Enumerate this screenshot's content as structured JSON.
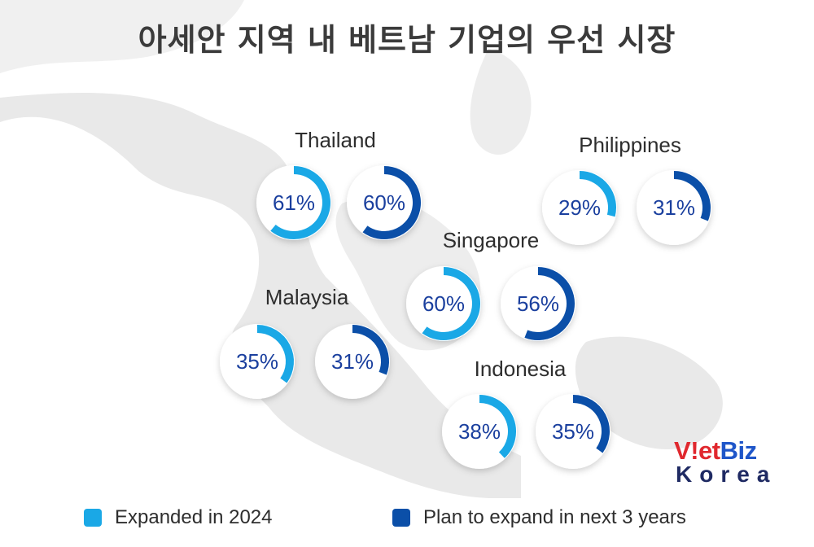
{
  "title": "아세안 지역 내 베트남 기업의 우선 시장",
  "chart_data": {
    "type": "donut",
    "value_unit": "%",
    "series": [
      {
        "name": "Expanded in 2024",
        "color": "#1aa8e6"
      },
      {
        "name": "Plan to expand in next 3 years",
        "color": "#0b4fa8"
      }
    ],
    "countries": [
      {
        "name": "Thailand",
        "expanded_2024": 61,
        "plan_3_years": 60
      },
      {
        "name": "Philippines",
        "expanded_2024": 29,
        "plan_3_years": 31
      },
      {
        "name": "Singapore",
        "expanded_2024": 60,
        "plan_3_years": 56
      },
      {
        "name": "Malaysia",
        "expanded_2024": 35,
        "plan_3_years": 31
      },
      {
        "name": "Indonesia",
        "expanded_2024": 38,
        "plan_3_years": 35
      }
    ]
  },
  "legend": [
    {
      "label": "Expanded in 2024",
      "color": "#1aa8e6"
    },
    {
      "label": "Plan to expand in next 3 years",
      "color": "#0b4fa8"
    }
  ],
  "logo": {
    "line1_a": "V",
    "line1_b": "!",
    "line1_c": "et",
    "line1_d": "Biz",
    "line2": "Korea"
  },
  "colors": {
    "value_text": "#1a3f9e",
    "map": "#e9e9e9",
    "title": "#3b3b3b"
  }
}
